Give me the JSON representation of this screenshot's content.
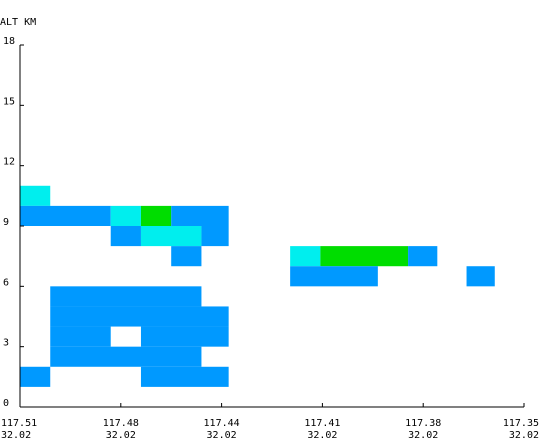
{
  "chart_data": {
    "type": "heatmap",
    "title": "",
    "ylabel": "ALT KM",
    "xlabel": "",
    "ylim": [
      0,
      18
    ],
    "xlim": [
      0,
      5
    ],
    "grid": false,
    "legend": "none",
    "y_ticks": [
      {
        "value": 0,
        "label": "0"
      },
      {
        "value": 3,
        "label": "3"
      },
      {
        "value": 6,
        "label": "6"
      },
      {
        "value": 9,
        "label": "9"
      },
      {
        "value": 12,
        "label": "12"
      },
      {
        "value": 15,
        "label": "15"
      },
      {
        "value": 18,
        "label": "18"
      }
    ],
    "x_ticks": [
      {
        "value": 0,
        "lon": "117.51",
        "lat": "32.02"
      },
      {
        "value": 1,
        "lon": "117.48",
        "lat": "32.02"
      },
      {
        "value": 2,
        "lon": "117.44",
        "lat": "32.02"
      },
      {
        "value": 3,
        "lon": "117.41",
        "lat": "32.02"
      },
      {
        "value": 4,
        "lon": "117.38",
        "lat": "32.02"
      },
      {
        "value": 5,
        "lon": "117.35",
        "lat": "32.02"
      }
    ],
    "colors": {
      "blue": "#0099ff",
      "cyan": "#00eeee",
      "green": "#00dd00"
    },
    "cells": [
      {
        "x0": 0.0,
        "x1": 0.3,
        "y0": 10.0,
        "y1": 11.0,
        "color": "cyan"
      },
      {
        "x0": 0.0,
        "x1": 0.9,
        "y0": 9.0,
        "y1": 10.0,
        "color": "blue"
      },
      {
        "x0": 0.9,
        "x1": 1.2,
        "y0": 9.0,
        "y1": 10.0,
        "color": "cyan"
      },
      {
        "x0": 1.2,
        "x1": 1.5,
        "y0": 9.0,
        "y1": 10.0,
        "color": "green"
      },
      {
        "x0": 1.5,
        "x1": 2.07,
        "y0": 9.0,
        "y1": 10.0,
        "color": "blue"
      },
      {
        "x0": 0.9,
        "x1": 1.2,
        "y0": 8.0,
        "y1": 9.0,
        "color": "blue"
      },
      {
        "x0": 1.2,
        "x1": 1.8,
        "y0": 8.0,
        "y1": 9.0,
        "color": "cyan"
      },
      {
        "x0": 1.8,
        "x1": 2.07,
        "y0": 8.0,
        "y1": 9.0,
        "color": "blue"
      },
      {
        "x0": 1.5,
        "x1": 1.8,
        "y0": 7.0,
        "y1": 8.0,
        "color": "blue"
      },
      {
        "x0": 2.68,
        "x1": 2.98,
        "y0": 7.0,
        "y1": 8.0,
        "color": "cyan"
      },
      {
        "x0": 2.98,
        "x1": 3.85,
        "y0": 7.0,
        "y1": 8.0,
        "color": "green"
      },
      {
        "x0": 3.85,
        "x1": 4.14,
        "y0": 7.0,
        "y1": 8.0,
        "color": "blue"
      },
      {
        "x0": 2.68,
        "x1": 3.55,
        "y0": 6.0,
        "y1": 7.0,
        "color": "blue"
      },
      {
        "x0": 4.43,
        "x1": 4.71,
        "y0": 6.0,
        "y1": 7.0,
        "color": "blue"
      },
      {
        "x0": 0.3,
        "x1": 1.8,
        "y0": 5.0,
        "y1": 6.0,
        "color": "blue"
      },
      {
        "x0": 0.3,
        "x1": 2.07,
        "y0": 4.0,
        "y1": 5.0,
        "color": "blue"
      },
      {
        "x0": 0.3,
        "x1": 0.9,
        "y0": 3.0,
        "y1": 4.0,
        "color": "blue"
      },
      {
        "x0": 1.2,
        "x1": 2.07,
        "y0": 3.0,
        "y1": 4.0,
        "color": "blue"
      },
      {
        "x0": 0.3,
        "x1": 1.8,
        "y0": 2.0,
        "y1": 3.0,
        "color": "blue"
      },
      {
        "x0": 0.0,
        "x1": 0.3,
        "y0": 1.0,
        "y1": 2.0,
        "color": "blue"
      },
      {
        "x0": 1.2,
        "x1": 2.07,
        "y0": 1.0,
        "y1": 2.0,
        "color": "blue"
      }
    ]
  }
}
